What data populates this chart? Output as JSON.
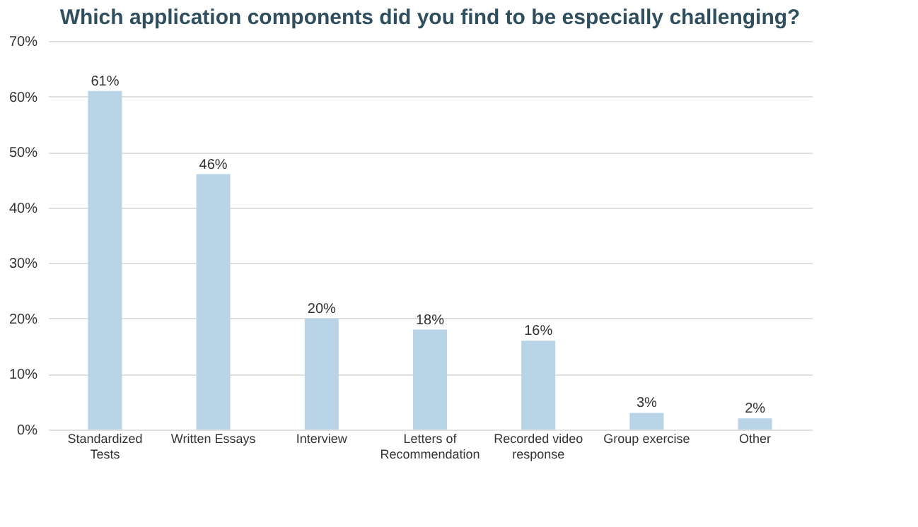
{
  "chart_data": {
    "type": "bar",
    "title": "Which application components did you find to be especially challenging?",
    "categories": [
      "Standardized Tests",
      "Written Essays",
      "Interview",
      "Letters of Recommendation",
      "Recorded video response",
      "Group exercise",
      "Other"
    ],
    "values": [
      61,
      46,
      20,
      18,
      16,
      3,
      2
    ],
    "value_labels": [
      "61%",
      "46%",
      "20%",
      "18%",
      "16%",
      "3%",
      "2%"
    ],
    "color": "#b8d4e6",
    "ylim": [
      0,
      70
    ],
    "yticks": [
      {
        "value": 0,
        "label": "0%"
      },
      {
        "value": 10,
        "label": "10%"
      },
      {
        "value": 20,
        "label": "20%"
      },
      {
        "value": 30,
        "label": "30%"
      },
      {
        "value": 40,
        "label": "40%"
      },
      {
        "value": 50,
        "label": "50%"
      },
      {
        "value": 60,
        "label": "60%"
      },
      {
        "value": 70,
        "label": "70%"
      }
    ],
    "grid": "y"
  }
}
